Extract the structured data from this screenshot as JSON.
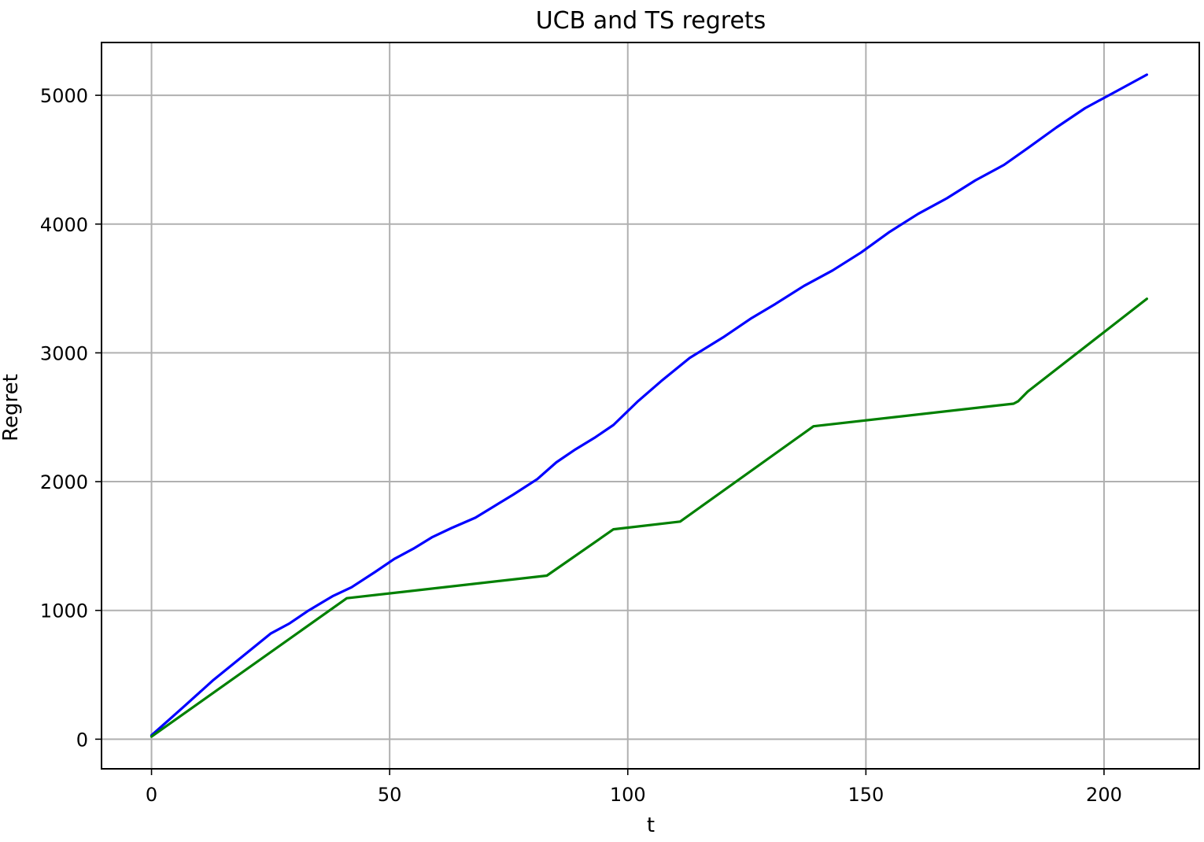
{
  "chart_data": {
    "type": "line",
    "title": "UCB and TS regrets",
    "xlabel": "t",
    "ylabel": "Regret",
    "xlim": [
      -10.5,
      220
    ],
    "ylim": [
      -230,
      5410
    ],
    "xticks": [
      0,
      50,
      100,
      150,
      200
    ],
    "xtick_labels": [
      "0",
      "50",
      "100",
      "150",
      "200"
    ],
    "yticks": [
      0,
      1000,
      2000,
      3000,
      4000,
      5000
    ],
    "ytick_labels": [
      "0",
      "1000",
      "2000",
      "3000",
      "4000",
      "5000"
    ],
    "grid": true,
    "series": [
      {
        "color": "#0000ff",
        "x": [
          0,
          7,
          13,
          20,
          25,
          29,
          33,
          38,
          42,
          47,
          51,
          55,
          59,
          63,
          68,
          72,
          76,
          81,
          85,
          89,
          93,
          97,
          102,
          107,
          113,
          120,
          126,
          131,
          137,
          143,
          149,
          155,
          161,
          167,
          173,
          179,
          184,
          190,
          196,
          203,
          209
        ],
        "y": [
          30,
          260,
          460,
          670,
          820,
          900,
          1000,
          1110,
          1180,
          1300,
          1400,
          1480,
          1570,
          1640,
          1720,
          1810,
          1900,
          2020,
          2150,
          2250,
          2340,
          2440,
          2620,
          2780,
          2960,
          3120,
          3270,
          3380,
          3520,
          3640,
          3780,
          3940,
          4080,
          4200,
          4340,
          4460,
          4590,
          4750,
          4900,
          5040,
          5160
        ]
      },
      {
        "color": "#008000",
        "x": [
          0,
          41,
          83,
          97,
          111,
          139,
          181,
          182,
          184,
          209
        ],
        "y": [
          20,
          1095,
          1270,
          1630,
          1690,
          2430,
          2605,
          2625,
          2700,
          3420
        ]
      }
    ]
  }
}
